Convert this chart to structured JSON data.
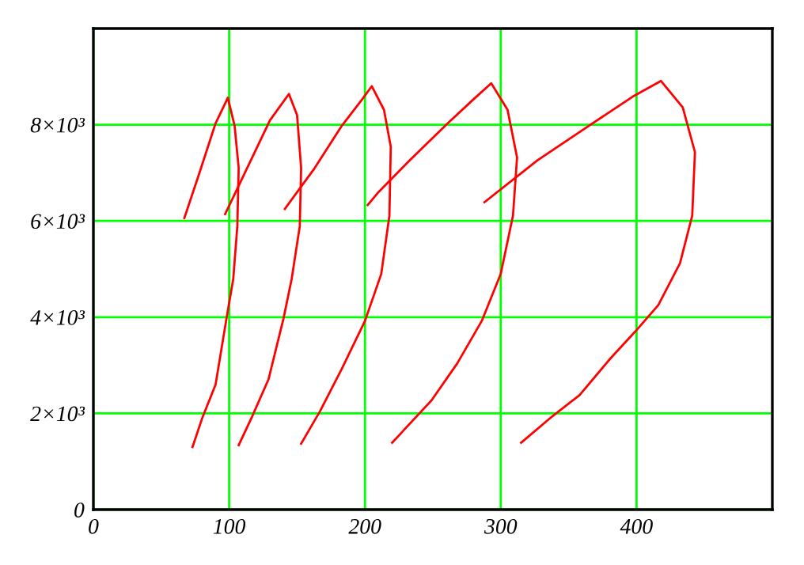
{
  "chart_data": {
    "type": "line",
    "xlim": [
      0,
      500
    ],
    "ylim": [
      0,
      10000
    ],
    "xticks": [
      0,
      100,
      200,
      300,
      400
    ],
    "yticks": [
      0,
      {
        "value": 2000,
        "label": "2×10³"
      },
      {
        "value": 4000,
        "label": "4×10³"
      },
      {
        "value": 6000,
        "label": "6×10³"
      },
      {
        "value": 8000,
        "label": "8×10³"
      }
    ],
    "grid": true,
    "legend": false,
    "marker": "none",
    "line_style": "solid",
    "series": [
      {
        "color": "#ff0000",
        "x": [
          67,
          78,
          90,
          99,
          104,
          107,
          106,
          103,
          98,
          90,
          80,
          73
        ],
        "values": [
          6060,
          6990,
          8030,
          8560,
          7980,
          7100,
          5890,
          4790,
          3970,
          2600,
          1890,
          1300
        ]
      },
      {
        "color": "#ff0000",
        "x": [
          97,
          117,
          130,
          144,
          150,
          153,
          152,
          146,
          140,
          129,
          117,
          107
        ],
        "values": [
          6140,
          7320,
          8090,
          8640,
          8200,
          7100,
          5890,
          4790,
          3970,
          2710,
          1940,
          1340
        ]
      },
      {
        "color": "#ff0000",
        "x": [
          141,
          163,
          183,
          198,
          205,
          214,
          219,
          218,
          212,
          200,
          183,
          167,
          153
        ],
        "values": [
          6250,
          7100,
          7980,
          8530,
          8800,
          8310,
          7540,
          6110,
          4900,
          3920,
          2930,
          2050,
          1370
        ]
      },
      {
        "color": "#ff0000",
        "x": [
          202,
          210,
          233,
          261,
          280,
          293,
          305,
          312,
          309,
          300,
          286,
          268,
          249,
          220
        ],
        "values": [
          6330,
          6600,
          7260,
          8030,
          8530,
          8860,
          8310,
          7320,
          6110,
          4900,
          3920,
          3040,
          2270,
          1390
        ]
      },
      {
        "color": "#ff0000",
        "x": [
          288,
          327,
          365,
          397,
          418,
          434,
          443,
          441,
          432,
          416,
          399,
          381,
          358,
          338,
          315
        ],
        "values": [
          6390,
          7260,
          7980,
          8580,
          8910,
          8360,
          7430,
          6110,
          5120,
          4250,
          3700,
          3150,
          2380,
          1940,
          1390
        ]
      }
    ]
  }
}
